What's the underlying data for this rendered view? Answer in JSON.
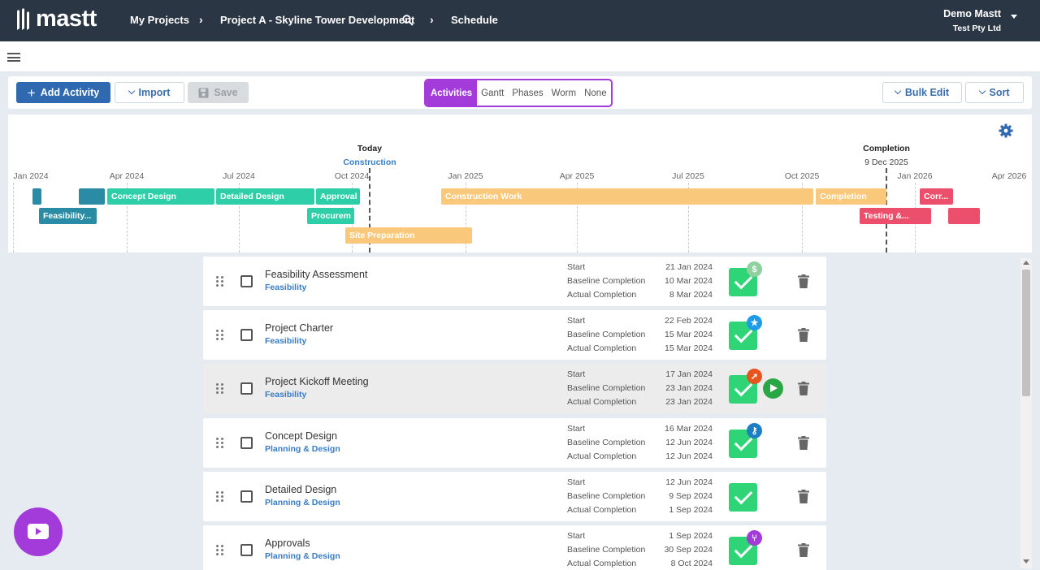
{
  "header": {
    "brand": "mastt",
    "breadcrumbs": [
      "My Projects",
      "Project A - Skyline Tower Development",
      "Schedule"
    ],
    "user_name": "Demo Mastt",
    "user_org": "Test Pty Ltd"
  },
  "toolbar": {
    "add_label": "Add Activity",
    "import_label": "Import",
    "save_label": "Save",
    "view_tabs": [
      "Activities",
      "Gantt",
      "Phases",
      "Worm",
      "None"
    ],
    "active_view": "Activities",
    "bulk_edit_label": "Bulk Edit",
    "sort_label": "Sort"
  },
  "timeline": {
    "months": [
      "Jan 2024",
      "Apr 2024",
      "Jul 2024",
      "Oct 2024",
      "Jan 2025",
      "Apr 2025",
      "Jul 2025",
      "Oct 2025",
      "Jan 2026",
      "Apr 2026"
    ],
    "today_label": "Today",
    "today_phase": "Construction",
    "completion_label": "Completion",
    "completion_date": "9 Dec 2025",
    "bars": [
      {
        "label": "",
        "color": "#2a8ba4"
      },
      {
        "label": "",
        "color": "#2a8ba4"
      },
      {
        "label": "Concept Design",
        "color": "#2ecfa8"
      },
      {
        "label": "Detailed Design",
        "color": "#2ecfa8"
      },
      {
        "label": "Approval",
        "color": "#2ecfa8"
      },
      {
        "label": "Construction Work",
        "color": "#f9c87a"
      },
      {
        "label": "Completion",
        "color": "#f9c87a"
      },
      {
        "label": "Corr...",
        "color": "#ec4f6b"
      },
      {
        "label": "Feasibility...",
        "color": "#2a8ba4"
      },
      {
        "label": "Procurem",
        "color": "#2ecfa8"
      },
      {
        "label": "Testing &...",
        "color": "#ec4f6b"
      },
      {
        "label": "",
        "color": "#ec4f6b"
      },
      {
        "label": "Site Preparation",
        "color": "#f9c87a"
      }
    ]
  },
  "date_labels": {
    "start": "Start",
    "baseline": "Baseline Completion",
    "actual": "Actual Completion"
  },
  "activities": [
    {
      "name": "Feasibility Assessment",
      "phase": "Feasibility",
      "start": "21 Jan 2024",
      "baseline": "10 Mar 2024",
      "actual": "8 Mar 2024",
      "badge_icon": "dollar-icon",
      "badge_symbol": "$",
      "badge_color": "#8fd19e"
    },
    {
      "name": "Project Charter",
      "phase": "Feasibility",
      "start": "22 Feb 2024",
      "baseline": "15 Mar 2024",
      "actual": "15 Mar 2024",
      "badge_icon": "star-icon",
      "badge_symbol": "★",
      "badge_color": "#1e9be9"
    },
    {
      "name": "Project Kickoff Meeting",
      "phase": "Feasibility",
      "start": "17 Jan 2024",
      "baseline": "23 Jan 2024",
      "actual": "23 Jan 2024",
      "badge_icon": "rocket-icon",
      "badge_symbol": "➚",
      "badge_color": "#e8541e"
    },
    {
      "name": "Concept Design",
      "phase": "Planning & Design",
      "start": "16 Mar 2024",
      "baseline": "12 Jun 2024",
      "actual": "12 Jun 2024",
      "badge_icon": "key-icon",
      "badge_symbol": "⚷",
      "badge_color": "#1c7fc4"
    },
    {
      "name": "Detailed Design",
      "phase": "Planning & Design",
      "start": "12 Jun 2024",
      "baseline": "9 Sep 2024",
      "actual": "1 Sep 2024",
      "badge_icon": "",
      "badge_symbol": "",
      "badge_color": ""
    },
    {
      "name": "Approvals",
      "phase": "Planning & Design",
      "start": "1 Sep 2024",
      "baseline": "30 Sep 2024",
      "actual": "8 Oct 2024",
      "badge_icon": "branch-icon",
      "badge_symbol": "⑂",
      "badge_color": "#a33bdb"
    }
  ]
}
